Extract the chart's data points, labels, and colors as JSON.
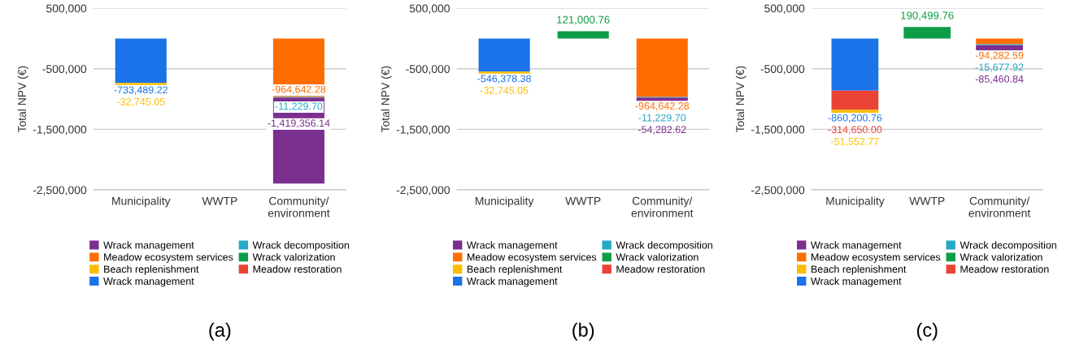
{
  "chart_data": [
    {
      "type": "bar",
      "stacked": true,
      "ylabel": "Total NPV (€)",
      "categories": [
        "Municipality",
        "WWTP",
        "Community/\nenvironment"
      ],
      "ylim": [
        -2500000,
        500000
      ],
      "yticks": [
        {
          "value": 500000,
          "label": "500,000"
        },
        {
          "value": -500000,
          "label": "-500,000"
        },
        {
          "value": -1500000,
          "label": "-1,500,000"
        },
        {
          "value": -2500000,
          "label": "-2,500,000"
        }
      ],
      "grid": "y",
      "legend": "bottom",
      "annotations": [
        "(a)"
      ],
      "series": [
        {
          "name": "Wrack management",
          "color": "#1a73e8",
          "values": [
            -733489.22,
            null,
            null
          ],
          "value_labels": [
            "-733,489.22",
            null,
            null
          ]
        },
        {
          "name": "Meadow restoration",
          "color": "#ea4335",
          "values": [
            null,
            null,
            null
          ],
          "value_labels": [
            null,
            null,
            null
          ]
        },
        {
          "name": "Beach replenishment",
          "color": "#fbbc04",
          "values": [
            -32745.05,
            null,
            null
          ],
          "value_labels": [
            "-32,745.05",
            null,
            null
          ]
        },
        {
          "name": "Wrack valorization",
          "color": "#0d9d48",
          "values": [
            null,
            null,
            null
          ],
          "value_labels": [
            null,
            null,
            null
          ]
        },
        {
          "name": "Meadow ecosystem services",
          "color": "#ff6d01",
          "values": [
            null,
            null,
            -964642.28
          ],
          "value_labels": [
            null,
            null,
            "-964,642.28"
          ]
        },
        {
          "name": "Wrack decomposition",
          "color": "#26a9c6",
          "values": [
            null,
            null,
            -11229.7
          ],
          "value_labels": [
            null,
            null,
            "-11,229.70"
          ]
        },
        {
          "name": "Wrack management",
          "color": "#7b2f8e",
          "values": [
            null,
            null,
            -1419356.14
          ],
          "value_labels": [
            null,
            null,
            "-1,419,356.14"
          ]
        }
      ]
    },
    {
      "type": "bar",
      "stacked": true,
      "ylabel": "Total NPV (€)",
      "categories": [
        "Municipality",
        "WWTP",
        "Community/\nenvironment"
      ],
      "ylim": [
        -2500000,
        500000
      ],
      "yticks": [
        {
          "value": 500000,
          "label": "500,000"
        },
        {
          "value": -500000,
          "label": "-500,000"
        },
        {
          "value": -1500000,
          "label": "-1,500,000"
        },
        {
          "value": -2500000,
          "label": "-2,500,000"
        }
      ],
      "grid": "y",
      "legend": "bottom",
      "annotations": [
        "(b)"
      ],
      "series": [
        {
          "name": "Wrack management",
          "color": "#1a73e8",
          "values": [
            -546378.38,
            null,
            null
          ],
          "value_labels": [
            "-546,378.38",
            null,
            null
          ]
        },
        {
          "name": "Meadow restoration",
          "color": "#ea4335",
          "values": [
            null,
            null,
            null
          ],
          "value_labels": [
            null,
            null,
            null
          ]
        },
        {
          "name": "Beach replenishment",
          "color": "#fbbc04",
          "values": [
            -32745.05,
            null,
            null
          ],
          "value_labels": [
            "-32,745.05",
            null,
            null
          ]
        },
        {
          "name": "Wrack valorization",
          "color": "#0d9d48",
          "values": [
            null,
            121000.76,
            null
          ],
          "value_labels": [
            null,
            "121,000.76",
            null
          ]
        },
        {
          "name": "Meadow ecosystem services",
          "color": "#ff6d01",
          "values": [
            null,
            null,
            -964642.28
          ],
          "value_labels": [
            null,
            null,
            "-964,642.28"
          ]
        },
        {
          "name": "Wrack decomposition",
          "color": "#26a9c6",
          "values": [
            null,
            null,
            -11229.7
          ],
          "value_labels": [
            null,
            null,
            "-11,229.70"
          ]
        },
        {
          "name": "Wrack management",
          "color": "#7b2f8e",
          "values": [
            null,
            null,
            -54282.62
          ],
          "value_labels": [
            null,
            null,
            "-54,282.62"
          ]
        }
      ]
    },
    {
      "type": "bar",
      "stacked": true,
      "ylabel": "Total NPV (€)",
      "categories": [
        "Municipality",
        "WWTP",
        "Community/\nenvironment"
      ],
      "ylim": [
        -2500000,
        500000
      ],
      "yticks": [
        {
          "value": 500000,
          "label": "500,000"
        },
        {
          "value": -500000,
          "label": "-500,000"
        },
        {
          "value": -1500000,
          "label": "-1,500,000"
        },
        {
          "value": -2500000,
          "label": "-2,500,000"
        }
      ],
      "grid": "y",
      "legend": "bottom",
      "annotations": [
        "(c)"
      ],
      "series": [
        {
          "name": "Wrack management",
          "color": "#1a73e8",
          "values": [
            -860200.76,
            null,
            null
          ],
          "value_labels": [
            "-860,200.76",
            null,
            null
          ]
        },
        {
          "name": "Meadow restoration",
          "color": "#ea4335",
          "values": [
            -314650.0,
            null,
            null
          ],
          "value_labels": [
            "-314,650.00",
            null,
            null
          ]
        },
        {
          "name": "Beach replenishment",
          "color": "#fbbc04",
          "values": [
            -51552.77,
            null,
            null
          ],
          "value_labels": [
            "-51,552.77",
            null,
            null
          ]
        },
        {
          "name": "Wrack valorization",
          "color": "#0d9d48",
          "values": [
            null,
            190499.76,
            null
          ],
          "value_labels": [
            null,
            "190,499.76",
            null
          ]
        },
        {
          "name": "Meadow ecosystem services",
          "color": "#ff6d01",
          "values": [
            null,
            null,
            -94282.59
          ],
          "value_labels": [
            null,
            null,
            "-94,282.59"
          ]
        },
        {
          "name": "Wrack decomposition",
          "color": "#26a9c6",
          "values": [
            null,
            null,
            -15677.92
          ],
          "value_labels": [
            null,
            null,
            "-15,677.92"
          ]
        },
        {
          "name": "Wrack management",
          "color": "#7b2f8e",
          "values": [
            null,
            null,
            -85460.84
          ],
          "value_labels": [
            null,
            null,
            "-85,460.84"
          ]
        }
      ]
    }
  ]
}
